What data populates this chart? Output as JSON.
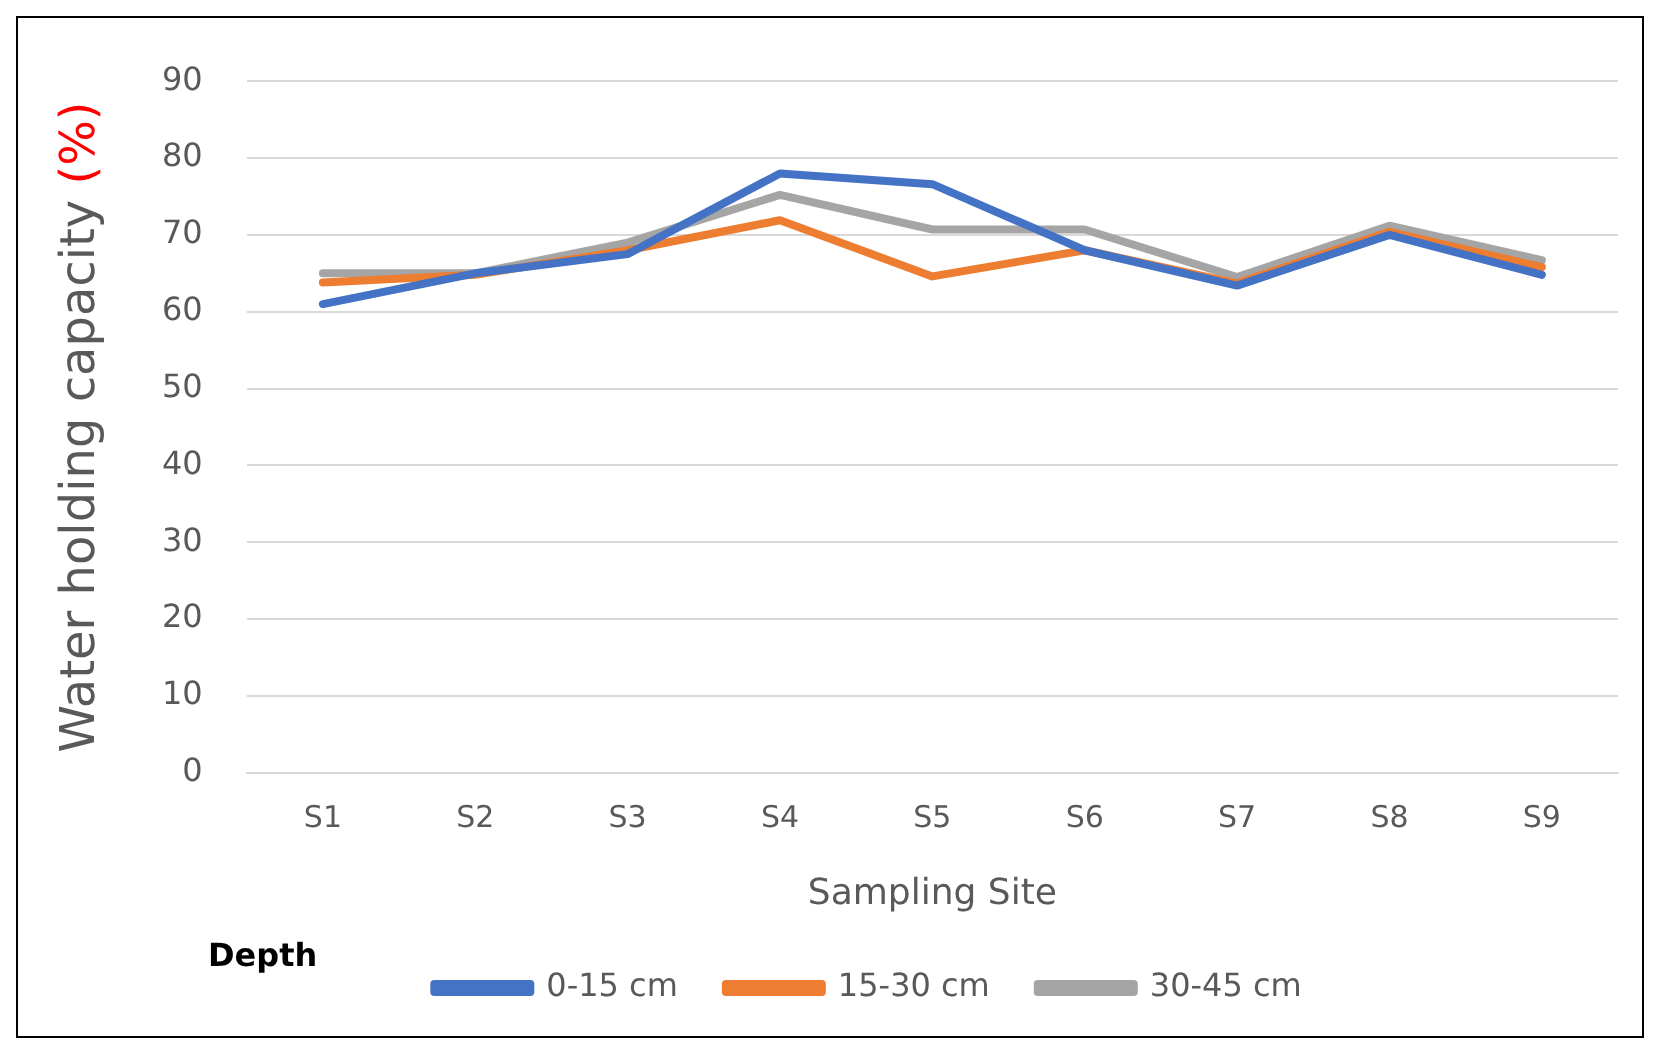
{
  "chart_data": {
    "type": "line",
    "xlabel": "Sampling Site",
    "ylabel": "Water holding capacity (%)",
    "legend_title": "Depth",
    "categories": [
      "S1",
      "S2",
      "S3",
      "S4",
      "S5",
      "S6",
      "S7",
      "S8",
      "S9"
    ],
    "series": [
      {
        "name": "0-15 cm",
        "color": "#4472c4",
        "values": [
          61,
          65,
          67.5,
          78,
          76.6,
          68,
          63.4,
          70,
          64.8
        ]
      },
      {
        "name": "15-30 cm",
        "color": "#ed7d31",
        "values": [
          63.8,
          64.8,
          68,
          71.9,
          64.6,
          68,
          63.7,
          70.4,
          65.8
        ]
      },
      {
        "name": "30-45 cm",
        "color": "#a5a5a5",
        "values": [
          65,
          65,
          69,
          75.2,
          70.7,
          70.7,
          64.5,
          71.2,
          66.7
        ]
      }
    ],
    "ylim": [
      0,
      90
    ],
    "yticks": [
      0,
      10,
      20,
      30,
      40,
      50,
      60,
      70,
      80,
      90
    ],
    "grid": "y",
    "legend": "bottom",
    "marker": "none",
    "line_style": "solid"
  }
}
